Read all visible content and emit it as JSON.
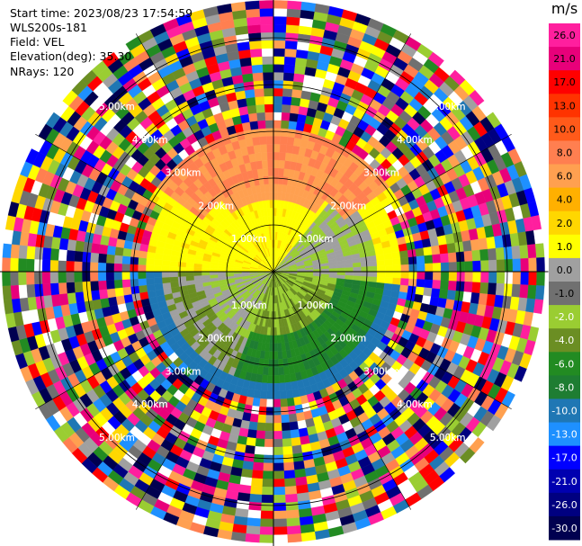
{
  "header": {
    "start_time": "Start time: 2023/08/23 17:54:59",
    "instrument": "WLS200s-181",
    "field": "Field: VEL",
    "elevation": "Elevation(deg): 35.30",
    "nrays": "NRays: 120"
  },
  "chart_data": {
    "type": "heatmap",
    "projection": "polar-ppi",
    "field": "VEL",
    "units": "m/s",
    "n_rays": 120,
    "range_rings": [
      {
        "label": "1.00km",
        "value": 1
      },
      {
        "label": "2.00km",
        "value": 2
      },
      {
        "label": "3.00km",
        "value": 3
      },
      {
        "label": "4.00km",
        "value": 4
      },
      {
        "label": "5.00km",
        "value": 5
      }
    ],
    "max_range_km": 5.8,
    "colorbar": {
      "title": "m/s",
      "ticks": [
        "26.0",
        "21.0",
        "17.0",
        "13.0",
        "10.0",
        "8.0",
        "6.0",
        "4.0",
        "2.0",
        "1.0",
        "0.0",
        "-1.0",
        "-2.0",
        "-4.0",
        "-6.0",
        "-8.0",
        "-10.0",
        "-13.0",
        "-17.0",
        "-21.0",
        "-26.0",
        "-30.0"
      ],
      "colors": [
        "#ff1f9e",
        "#e8007a",
        "#ff0000",
        "#ff3300",
        "#ff5a1a",
        "#ff7f50",
        "#ffa050",
        "#ffb000",
        "#ffd700",
        "#ffff00",
        "#a0a0a0",
        "#707070",
        "#9acd32",
        "#6b8e23",
        "#228b22",
        "#1e7d32",
        "#1f77b4",
        "#1e90ff",
        "#0000ff",
        "#0000b0",
        "#000080",
        "#000050"
      ]
    },
    "valid_regions": {
      "inner_radius_km": 2.8,
      "north_half": "positive (1 to 8 m/s, yellow–orange)",
      "south_half": "negative (-1 to -10 m/s, gray–green–blue)"
    },
    "grid": true
  }
}
